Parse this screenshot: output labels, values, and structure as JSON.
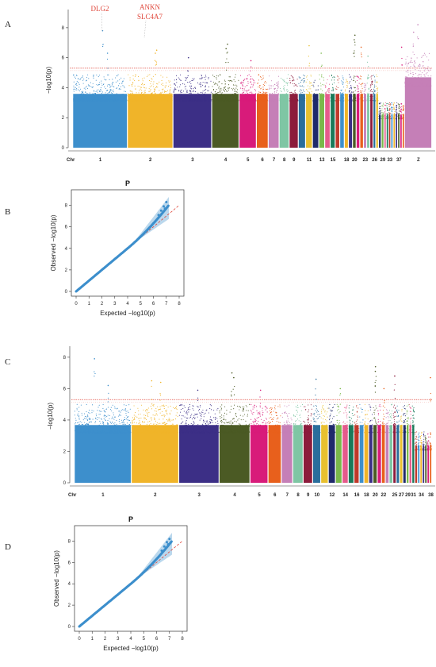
{
  "panels": {
    "A": "A",
    "B": "B",
    "C": "C",
    "D": "D"
  },
  "chart_data": [
    {
      "id": "manhattan-A",
      "type": "scatter",
      "subtype": "manhattan",
      "xlabel": "Chr",
      "ylabel": "−log10(p)",
      "ylim": [
        0,
        9
      ],
      "yticks": [
        0,
        2,
        4,
        6,
        8
      ],
      "threshold": 5.3,
      "threshold_color": "#e0483c",
      "chromosome_tick_labels": [
        "1",
        "2",
        "3",
        "4",
        "5",
        "6",
        "7",
        "8",
        "9",
        "11",
        "13",
        "15",
        "18",
        "20",
        "23",
        "26",
        "29",
        "33",
        "37",
        "Z"
      ],
      "annotations": [
        {
          "text": "DLG2",
          "chromosome": "1",
          "y": 7.8
        },
        {
          "text": "ANKN",
          "chromosome": "2",
          "y": 6.4
        },
        {
          "text": "SLC4A7",
          "chromosome": "2",
          "y": 6.4
        }
      ],
      "colors": [
        "#3d8fcc",
        "#f0b429",
        "#3c2f86",
        "#4b5a24",
        "#d81b7a",
        "#e8601c",
        "#c57fb7",
        "#7fc6a4",
        "#8c1c3c",
        "#2a6e9c",
        "#e8c030",
        "#1f2a6b",
        "#7ab84a",
        "#e55b8c",
        "#1a7a5a",
        "#c0392b"
      ]
    },
    {
      "id": "qq-B",
      "type": "scatter",
      "subtype": "qq",
      "title": "P",
      "xlabel": "Expected −log10(p)",
      "ylabel": "Observed −log10(p)",
      "xlim": [
        0,
        8
      ],
      "ylim": [
        0,
        9
      ],
      "xticks": [
        0,
        1,
        2,
        3,
        4,
        5,
        6,
        7,
        8
      ],
      "yticks": [
        0,
        2,
        4,
        6,
        8
      ],
      "max_expected": 7.2,
      "max_observed": 8.3,
      "point_color": "#3d8fcc",
      "line_color": "#e0483c"
    },
    {
      "id": "manhattan-C",
      "type": "scatter",
      "subtype": "manhattan",
      "xlabel": "Chr",
      "ylabel": "−log10(p)",
      "ylim": [
        0,
        8.5
      ],
      "yticks": [
        0,
        2,
        4,
        6,
        8
      ],
      "threshold": 5.3,
      "threshold_color": "#e0483c",
      "chromosome_tick_labels": [
        "1",
        "2",
        "3",
        "4",
        "5",
        "6",
        "7",
        "8",
        "9",
        "10",
        "12",
        "14",
        "16",
        "18",
        "20",
        "22",
        "25",
        "27",
        "29",
        "31",
        "34",
        "38"
      ],
      "colors": [
        "#3d8fcc",
        "#f0b429",
        "#3c2f86",
        "#4b5a24",
        "#d81b7a",
        "#e8601c",
        "#c57fb7",
        "#7fc6a4",
        "#8c1c3c",
        "#2a6e9c",
        "#e8c030",
        "#1f2a6b",
        "#7ab84a",
        "#e55b8c",
        "#1a7a5a",
        "#c0392b"
      ]
    },
    {
      "id": "qq-D",
      "type": "scatter",
      "subtype": "qq",
      "title": "P",
      "xlabel": "Expected −log10(p)",
      "ylabel": "Observed −log10(p)",
      "xlim": [
        0,
        8
      ],
      "ylim": [
        0,
        9
      ],
      "xticks": [
        0,
        1,
        2,
        3,
        4,
        5,
        6,
        7,
        8
      ],
      "yticks": [
        0,
        2,
        4,
        6,
        8
      ],
      "max_expected": 7.2,
      "max_observed": 8.2,
      "point_color": "#3d8fcc",
      "line_color": "#e0483c"
    }
  ]
}
